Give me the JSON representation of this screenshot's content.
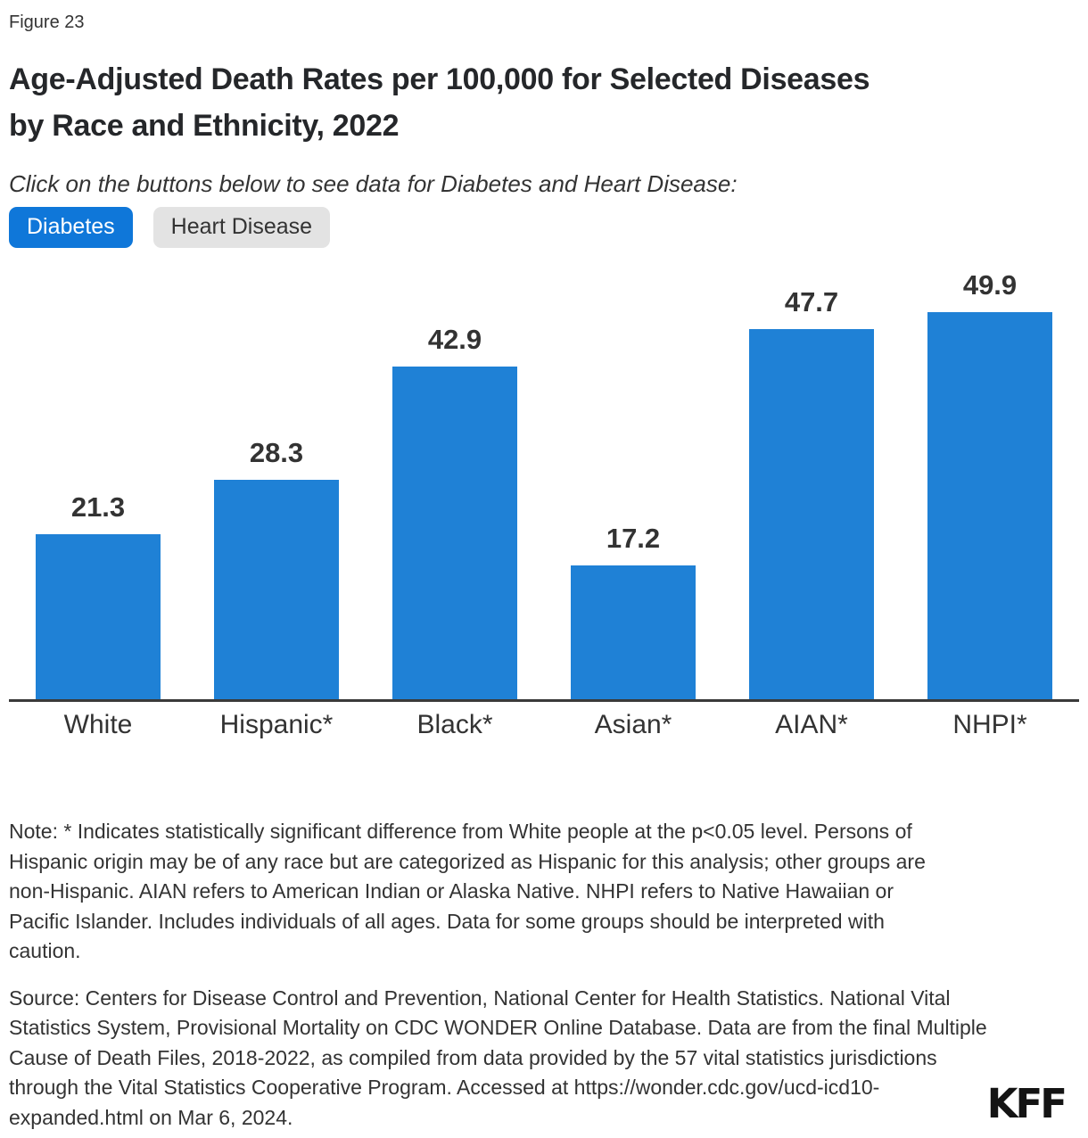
{
  "figure_label": "Figure 23",
  "title": {
    "line1": "Age-Adjusted Death Rates per 100,000 for Selected Diseases",
    "line2": "by Race and Ethnicity, 2022"
  },
  "instruction": "Click on the buttons below to see data for Diabetes and Heart Disease:",
  "buttons": [
    {
      "label": "Diabetes",
      "active": true
    },
    {
      "label": "Heart Disease",
      "active": false
    }
  ],
  "chart_data": {
    "type": "bar",
    "title": "Age-Adjusted Death Rates per 100,000 for Selected Diseases by Race and Ethnicity, 2022",
    "selected_series": "Diabetes",
    "categories": [
      "White",
      "Hispanic*",
      "Black*",
      "Asian*",
      "AIAN*",
      "NHPI*"
    ],
    "values": [
      21.3,
      28.3,
      42.9,
      17.2,
      47.7,
      49.9
    ],
    "value_labels": [
      "21.3",
      "28.3",
      "42.9",
      "17.2",
      "47.7",
      "49.9"
    ],
    "xlabel": "",
    "ylim": [
      0,
      58
    ],
    "grid": false,
    "legend": "none",
    "data_labels": true,
    "bar_color": "#1F81D6"
  },
  "colors": {
    "bar_blue": "#1F81D6",
    "active_button_blue": "#0F77D9",
    "inactive_button_gray": "#E3E3E3",
    "text": "#333333",
    "axis": "#3A3A3A"
  },
  "note": "Note: * Indicates statistically significant difference from White people at the p<0.05 level. Persons of Hispanic origin may be of any race but are categorized as Hispanic for this analysis; other groups are non-Hispanic. AIAN refers to American Indian or Alaska Native. NHPI refers to Native Hawaiian or Pacific Islander. Includes individuals of all ages. Data for some groups should be interpreted with caution.",
  "source": "Source: Centers for Disease Control and Prevention, National Center for Health Statistics. National Vital Statistics System, Provisional Mortality on CDC WONDER Online Database. Data are from the final Multiple Cause of Death Files, 2018-2022, as compiled from data provided by the 57 vital statistics jurisdictions through the Vital Statistics Cooperative Program. Accessed at https://wonder.cdc.gov/ucd-icd10-expanded.html on Mar 6, 2024.",
  "branding": {
    "logo": "KFF"
  }
}
